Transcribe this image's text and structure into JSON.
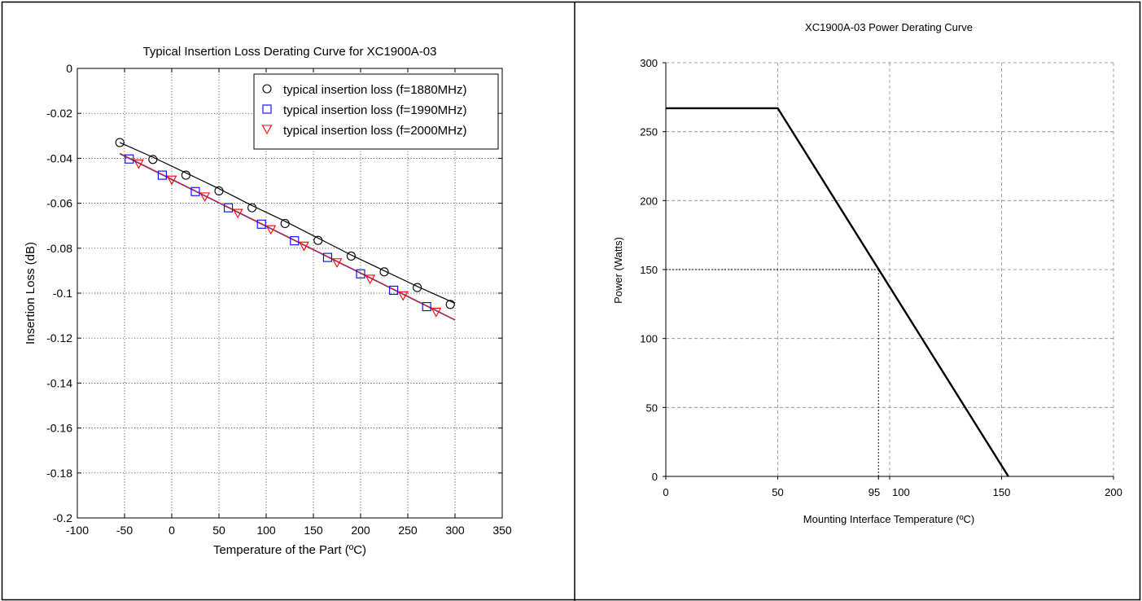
{
  "chart_data": [
    {
      "type": "line",
      "title": "Typical Insertion Loss Derating Curve for XC1900A-03",
      "xlabel": "Temperature of the Part (ºC)",
      "ylabel": "Insertion Loss (dB)",
      "xlim": [
        -100,
        350
      ],
      "ylim": [
        -0.2,
        0
      ],
      "xticks": [
        -100,
        -50,
        0,
        50,
        100,
        150,
        200,
        250,
        300,
        350
      ],
      "xtick_labels": [
        "-100",
        "-50",
        "0",
        "50",
        "100",
        "150",
        "200",
        "250",
        "300",
        "350"
      ],
      "yticks": [
        0,
        -0.02,
        -0.04,
        -0.06,
        -0.08,
        -0.1,
        -0.12,
        -0.14,
        -0.16,
        -0.18,
        -0.2
      ],
      "ytick_labels": [
        "0",
        "-0.02",
        "-0.04",
        "-0.06",
        "-0.08",
        "-0.1",
        "-0.12",
        "-0.14",
        "-0.16",
        "-0.18",
        "-0.2"
      ],
      "grid": true,
      "legend_position": "top-right",
      "series": [
        {
          "name": "typical insertion loss (f=1880MHz)",
          "marker": "circle",
          "color": "#000000",
          "x": [
            -55,
            -20,
            15,
            50,
            85,
            120,
            155,
            190,
            225,
            260,
            295
          ],
          "y": [
            -0.033,
            -0.0405,
            -0.0475,
            -0.0545,
            -0.062,
            -0.069,
            -0.0765,
            -0.0835,
            -0.0905,
            -0.0975,
            -0.105
          ],
          "fit": [
            [
              -55,
              -0.033
            ],
            [
              -20,
              -0.0395
            ],
            [
              15,
              -0.0465
            ],
            [
              50,
              -0.0535
            ],
            [
              85,
              -0.061
            ],
            [
              120,
              -0.068
            ],
            [
              155,
              -0.0755
            ],
            [
              190,
              -0.083
            ],
            [
              225,
              -0.09
            ],
            [
              260,
              -0.097
            ],
            [
              300,
              -0.1045
            ]
          ]
        },
        {
          "name": "typical insertion loss (f=1990MHz)",
          "marker": "square",
          "color": "#0000ff",
          "x": [
            -45,
            -10,
            25,
            60,
            95,
            130,
            165,
            200,
            235,
            270
          ],
          "y": [
            -0.0403,
            -0.0475,
            -0.0548,
            -0.062,
            -0.0693,
            -0.0767,
            -0.0841,
            -0.0914,
            -0.0987,
            -0.106
          ],
          "fit": [
            [
              -55,
              -0.038
            ],
            [
              300,
              -0.112
            ]
          ]
        },
        {
          "name": "typical insertion loss (f=2000MHz)",
          "marker": "triangle-down",
          "color": "#ff0000",
          "x": [
            -35,
            0,
            35,
            70,
            105,
            140,
            175,
            210,
            245,
            280
          ],
          "y": [
            -0.0425,
            -0.0497,
            -0.0572,
            -0.0645,
            -0.0718,
            -0.0791,
            -0.0865,
            -0.0938,
            -0.1012,
            -0.1085
          ],
          "fit": [
            [
              -55,
              -0.0378
            ],
            [
              300,
              -0.1118
            ]
          ]
        }
      ]
    },
    {
      "type": "line",
      "title": "XC1900A-03 Power Derating Curve",
      "xlabel": "Mounting Interface Temperature (ºC)",
      "ylabel": "Power (Watts)",
      "xlim": [
        0,
        200
      ],
      "ylim": [
        0,
        300
      ],
      "xticks": [
        0,
        50,
        95,
        100,
        150,
        200
      ],
      "xtick_labels": [
        "0",
        "50",
        "95",
        "100",
        "150",
        "200"
      ],
      "yticks": [
        0,
        50,
        100,
        150,
        200,
        250,
        300
      ],
      "ytick_labels": [
        "0",
        "50",
        "100",
        "150",
        "200",
        "250",
        "300"
      ],
      "grid": true,
      "series": [
        {
          "color": "#000000",
          "x": [
            0,
            50,
            153
          ],
          "y": [
            267,
            267,
            0
          ]
        }
      ],
      "reference_point": {
        "x": 95,
        "y": 150
      }
    }
  ]
}
